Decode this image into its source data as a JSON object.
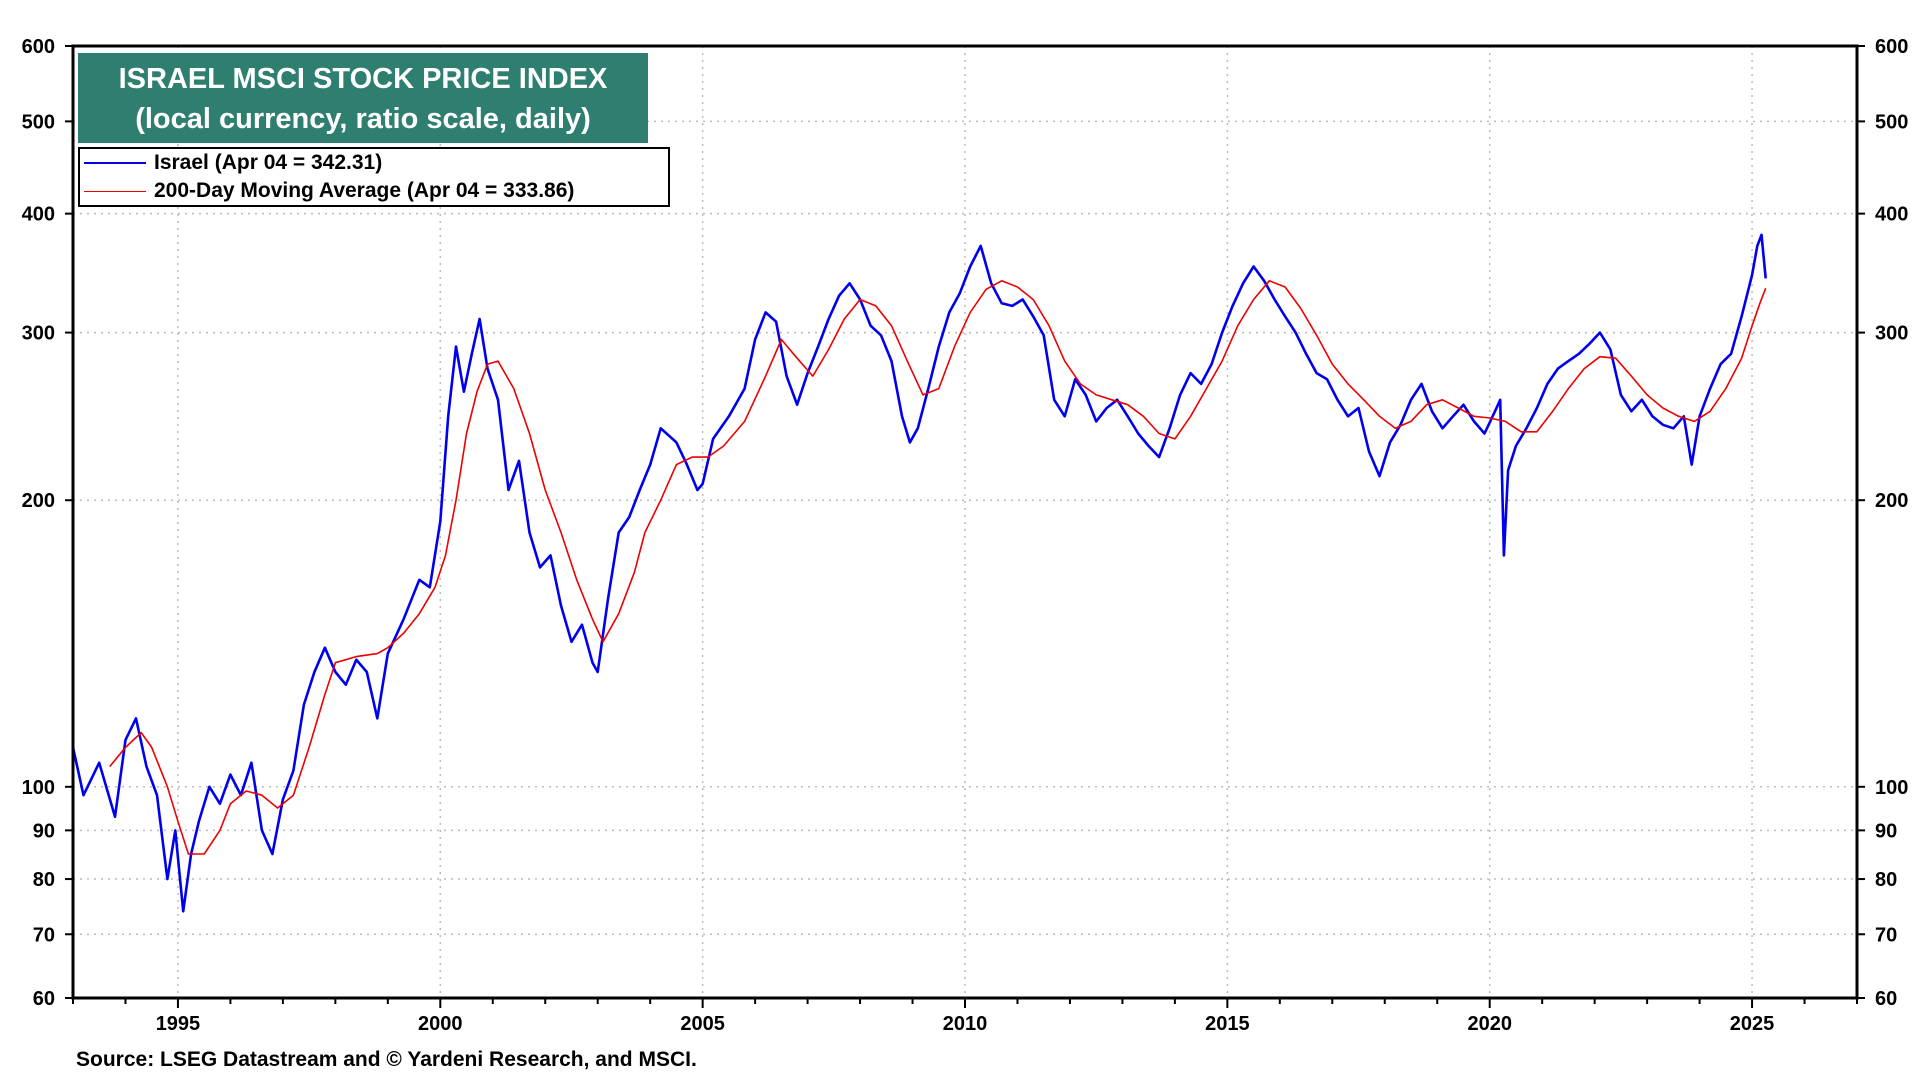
{
  "title": {
    "line1": "ISRAEL MSCI STOCK PRICE INDEX",
    "line2": "(local currency, ratio scale, daily)"
  },
  "legend": {
    "israel": "Israel (Apr 04 = 342.31)",
    "ma": "200-Day Moving Average (Apr 04 = 333.86)"
  },
  "source": "Source: LSEG Datastream and © Yardeni Research, and MSCI.",
  "colors": {
    "title_bg": "#2e7f6f",
    "israel": "#0000ee",
    "ma": "#ee0000",
    "grid": "#bbbbbb"
  },
  "chart_data": {
    "type": "line",
    "title": "ISRAEL MSCI STOCK PRICE INDEX",
    "subtitle": "(local currency, ratio scale, daily)",
    "y_scale": "log",
    "ylim": [
      60,
      600
    ],
    "xlim": [
      1993.0,
      2027.0
    ],
    "y_ticks": [
      60,
      70,
      80,
      90,
      100,
      200,
      300,
      400,
      500,
      600
    ],
    "y_tick_labels": [
      "60",
      "70",
      "80",
      "90",
      "100",
      "200",
      "300",
      "400",
      "500",
      "600"
    ],
    "x_ticks": [
      1995,
      2000,
      2005,
      2010,
      2015,
      2020,
      2025
    ],
    "x_tick_labels": [
      "1995",
      "2000",
      "2005",
      "2010",
      "2015",
      "2020",
      "2025"
    ],
    "grid": true,
    "series": [
      {
        "name": "Israel (Apr 04 = 342.31)",
        "color": "#0000ee",
        "points": [
          [
            1993.0,
            110
          ],
          [
            1993.2,
            98
          ],
          [
            1993.5,
            106
          ],
          [
            1993.8,
            93
          ],
          [
            1994.0,
            112
          ],
          [
            1994.2,
            118
          ],
          [
            1994.4,
            105
          ],
          [
            1994.6,
            98
          ],
          [
            1994.8,
            80
          ],
          [
            1994.95,
            90
          ],
          [
            1995.1,
            74
          ],
          [
            1995.25,
            85
          ],
          [
            1995.4,
            92
          ],
          [
            1995.6,
            100
          ],
          [
            1995.8,
            96
          ],
          [
            1996.0,
            103
          ],
          [
            1996.2,
            98
          ],
          [
            1996.4,
            106
          ],
          [
            1996.6,
            90
          ],
          [
            1996.8,
            85
          ],
          [
            1997.0,
            97
          ],
          [
            1997.2,
            104
          ],
          [
            1997.4,
            122
          ],
          [
            1997.6,
            132
          ],
          [
            1997.8,
            140
          ],
          [
            1998.0,
            132
          ],
          [
            1998.2,
            128
          ],
          [
            1998.4,
            136
          ],
          [
            1998.6,
            132
          ],
          [
            1998.8,
            118
          ],
          [
            1999.0,
            138
          ],
          [
            1999.3,
            150
          ],
          [
            1999.6,
            165
          ],
          [
            1999.8,
            162
          ],
          [
            2000.0,
            190
          ],
          [
            2000.15,
            245
          ],
          [
            2000.3,
            290
          ],
          [
            2000.45,
            260
          ],
          [
            2000.6,
            285
          ],
          [
            2000.75,
            310
          ],
          [
            2000.9,
            275
          ],
          [
            2001.1,
            255
          ],
          [
            2001.3,
            205
          ],
          [
            2001.5,
            220
          ],
          [
            2001.7,
            185
          ],
          [
            2001.9,
            170
          ],
          [
            2002.1,
            175
          ],
          [
            2002.3,
            155
          ],
          [
            2002.5,
            142
          ],
          [
            2002.7,
            148
          ],
          [
            2002.9,
            135
          ],
          [
            2003.0,
            132
          ],
          [
            2003.2,
            158
          ],
          [
            2003.4,
            185
          ],
          [
            2003.6,
            192
          ],
          [
            2003.8,
            205
          ],
          [
            2004.0,
            218
          ],
          [
            2004.2,
            238
          ],
          [
            2004.5,
            230
          ],
          [
            2004.7,
            218
          ],
          [
            2004.9,
            205
          ],
          [
            2005.0,
            208
          ],
          [
            2005.2,
            232
          ],
          [
            2005.5,
            245
          ],
          [
            2005.8,
            262
          ],
          [
            2006.0,
            295
          ],
          [
            2006.2,
            315
          ],
          [
            2006.4,
            308
          ],
          [
            2006.6,
            270
          ],
          [
            2006.8,
            252
          ],
          [
            2007.0,
            272
          ],
          [
            2007.2,
            290
          ],
          [
            2007.4,
            310
          ],
          [
            2007.6,
            328
          ],
          [
            2007.8,
            338
          ],
          [
            2008.0,
            325
          ],
          [
            2008.2,
            305
          ],
          [
            2008.4,
            298
          ],
          [
            2008.6,
            280
          ],
          [
            2008.8,
            245
          ],
          [
            2008.95,
            230
          ],
          [
            2009.1,
            238
          ],
          [
            2009.3,
            262
          ],
          [
            2009.5,
            290
          ],
          [
            2009.7,
            315
          ],
          [
            2009.9,
            330
          ],
          [
            2010.1,
            352
          ],
          [
            2010.3,
            370
          ],
          [
            2010.5,
            338
          ],
          [
            2010.7,
            322
          ],
          [
            2010.9,
            320
          ],
          [
            2011.1,
            325
          ],
          [
            2011.3,
            312
          ],
          [
            2011.5,
            298
          ],
          [
            2011.7,
            255
          ],
          [
            2011.9,
            245
          ],
          [
            2012.1,
            268
          ],
          [
            2012.3,
            258
          ],
          [
            2012.5,
            242
          ],
          [
            2012.7,
            250
          ],
          [
            2012.9,
            255
          ],
          [
            2013.1,
            245
          ],
          [
            2013.3,
            235
          ],
          [
            2013.5,
            228
          ],
          [
            2013.7,
            222
          ],
          [
            2013.9,
            238
          ],
          [
            2014.1,
            258
          ],
          [
            2014.3,
            272
          ],
          [
            2014.5,
            265
          ],
          [
            2014.7,
            278
          ],
          [
            2014.9,
            300
          ],
          [
            2015.1,
            320
          ],
          [
            2015.3,
            338
          ],
          [
            2015.5,
            352
          ],
          [
            2015.7,
            340
          ],
          [
            2015.9,
            325
          ],
          [
            2016.1,
            312
          ],
          [
            2016.3,
            300
          ],
          [
            2016.5,
            285
          ],
          [
            2016.7,
            272
          ],
          [
            2016.9,
            268
          ],
          [
            2017.1,
            255
          ],
          [
            2017.3,
            245
          ],
          [
            2017.5,
            250
          ],
          [
            2017.7,
            225
          ],
          [
            2017.9,
            212
          ],
          [
            2018.1,
            230
          ],
          [
            2018.3,
            240
          ],
          [
            2018.5,
            255
          ],
          [
            2018.7,
            265
          ],
          [
            2018.9,
            248
          ],
          [
            2019.1,
            238
          ],
          [
            2019.3,
            245
          ],
          [
            2019.5,
            252
          ],
          [
            2019.7,
            242
          ],
          [
            2019.9,
            235
          ],
          [
            2020.1,
            248
          ],
          [
            2020.2,
            255
          ],
          [
            2020.27,
            175
          ],
          [
            2020.35,
            215
          ],
          [
            2020.5,
            228
          ],
          [
            2020.7,
            238
          ],
          [
            2020.9,
            250
          ],
          [
            2021.1,
            265
          ],
          [
            2021.3,
            275
          ],
          [
            2021.5,
            280
          ],
          [
            2021.7,
            285
          ],
          [
            2021.9,
            292
          ],
          [
            2022.1,
            300
          ],
          [
            2022.3,
            288
          ],
          [
            2022.5,
            258
          ],
          [
            2022.7,
            248
          ],
          [
            2022.9,
            255
          ],
          [
            2023.1,
            245
          ],
          [
            2023.3,
            240
          ],
          [
            2023.5,
            238
          ],
          [
            2023.7,
            245
          ],
          [
            2023.85,
            218
          ],
          [
            2024.0,
            245
          ],
          [
            2024.2,
            262
          ],
          [
            2024.4,
            278
          ],
          [
            2024.6,
            285
          ],
          [
            2024.8,
            312
          ],
          [
            2025.0,
            345
          ],
          [
            2025.1,
            370
          ],
          [
            2025.18,
            380
          ],
          [
            2025.26,
            342
          ]
        ]
      },
      {
        "name": "200-Day Moving Average (Apr 04 = 333.86)",
        "color": "#ee0000",
        "points": [
          [
            1993.7,
            105
          ],
          [
            1994.0,
            110
          ],
          [
            1994.3,
            114
          ],
          [
            1994.5,
            110
          ],
          [
            1994.8,
            100
          ],
          [
            1995.0,
            92
          ],
          [
            1995.2,
            85
          ],
          [
            1995.5,
            85
          ],
          [
            1995.8,
            90
          ],
          [
            1996.0,
            96
          ],
          [
            1996.3,
            99
          ],
          [
            1996.6,
            98
          ],
          [
            1996.9,
            95
          ],
          [
            1997.2,
            98
          ],
          [
            1997.5,
            110
          ],
          [
            1997.8,
            125
          ],
          [
            1998.0,
            135
          ],
          [
            1998.4,
            137
          ],
          [
            1998.8,
            138
          ],
          [
            1999.0,
            140
          ],
          [
            1999.3,
            145
          ],
          [
            1999.6,
            152
          ],
          [
            1999.9,
            162
          ],
          [
            2000.1,
            175
          ],
          [
            2000.3,
            200
          ],
          [
            2000.5,
            235
          ],
          [
            2000.7,
            260
          ],
          [
            2000.9,
            278
          ],
          [
            2001.1,
            280
          ],
          [
            2001.4,
            262
          ],
          [
            2001.7,
            235
          ],
          [
            2002.0,
            205
          ],
          [
            2002.3,
            185
          ],
          [
            2002.6,
            165
          ],
          [
            2002.9,
            150
          ],
          [
            2003.1,
            142
          ],
          [
            2003.4,
            152
          ],
          [
            2003.7,
            168
          ],
          [
            2003.9,
            185
          ],
          [
            2004.2,
            200
          ],
          [
            2004.5,
            218
          ],
          [
            2004.8,
            222
          ],
          [
            2005.1,
            222
          ],
          [
            2005.4,
            228
          ],
          [
            2005.8,
            242
          ],
          [
            2006.2,
            270
          ],
          [
            2006.5,
            295
          ],
          [
            2006.8,
            282
          ],
          [
            2007.1,
            270
          ],
          [
            2007.4,
            288
          ],
          [
            2007.7,
            310
          ],
          [
            2008.0,
            325
          ],
          [
            2008.3,
            320
          ],
          [
            2008.6,
            305
          ],
          [
            2008.9,
            280
          ],
          [
            2009.2,
            258
          ],
          [
            2009.5,
            262
          ],
          [
            2009.8,
            290
          ],
          [
            2010.1,
            315
          ],
          [
            2010.4,
            333
          ],
          [
            2010.7,
            340
          ],
          [
            2011.0,
            335
          ],
          [
            2011.3,
            325
          ],
          [
            2011.6,
            305
          ],
          [
            2011.9,
            280
          ],
          [
            2012.2,
            265
          ],
          [
            2012.5,
            258
          ],
          [
            2012.8,
            255
          ],
          [
            2013.1,
            252
          ],
          [
            2013.4,
            245
          ],
          [
            2013.7,
            235
          ],
          [
            2014.0,
            232
          ],
          [
            2014.3,
            245
          ],
          [
            2014.6,
            262
          ],
          [
            2014.9,
            280
          ],
          [
            2015.2,
            305
          ],
          [
            2015.5,
            325
          ],
          [
            2015.8,
            340
          ],
          [
            2016.1,
            335
          ],
          [
            2016.4,
            318
          ],
          [
            2016.7,
            298
          ],
          [
            2017.0,
            278
          ],
          [
            2017.3,
            265
          ],
          [
            2017.6,
            255
          ],
          [
            2017.9,
            245
          ],
          [
            2018.2,
            238
          ],
          [
            2018.5,
            242
          ],
          [
            2018.8,
            252
          ],
          [
            2019.1,
            255
          ],
          [
            2019.4,
            250
          ],
          [
            2019.7,
            245
          ],
          [
            2020.0,
            244
          ],
          [
            2020.3,
            242
          ],
          [
            2020.6,
            236
          ],
          [
            2020.9,
            236
          ],
          [
            2021.2,
            248
          ],
          [
            2021.5,
            262
          ],
          [
            2021.8,
            275
          ],
          [
            2022.1,
            283
          ],
          [
            2022.4,
            282
          ],
          [
            2022.7,
            270
          ],
          [
            2023.0,
            258
          ],
          [
            2023.3,
            250
          ],
          [
            2023.6,
            245
          ],
          [
            2023.9,
            242
          ],
          [
            2024.2,
            248
          ],
          [
            2024.5,
            262
          ],
          [
            2024.8,
            282
          ],
          [
            2025.0,
            305
          ],
          [
            2025.15,
            322
          ],
          [
            2025.26,
            334
          ]
        ]
      }
    ]
  }
}
